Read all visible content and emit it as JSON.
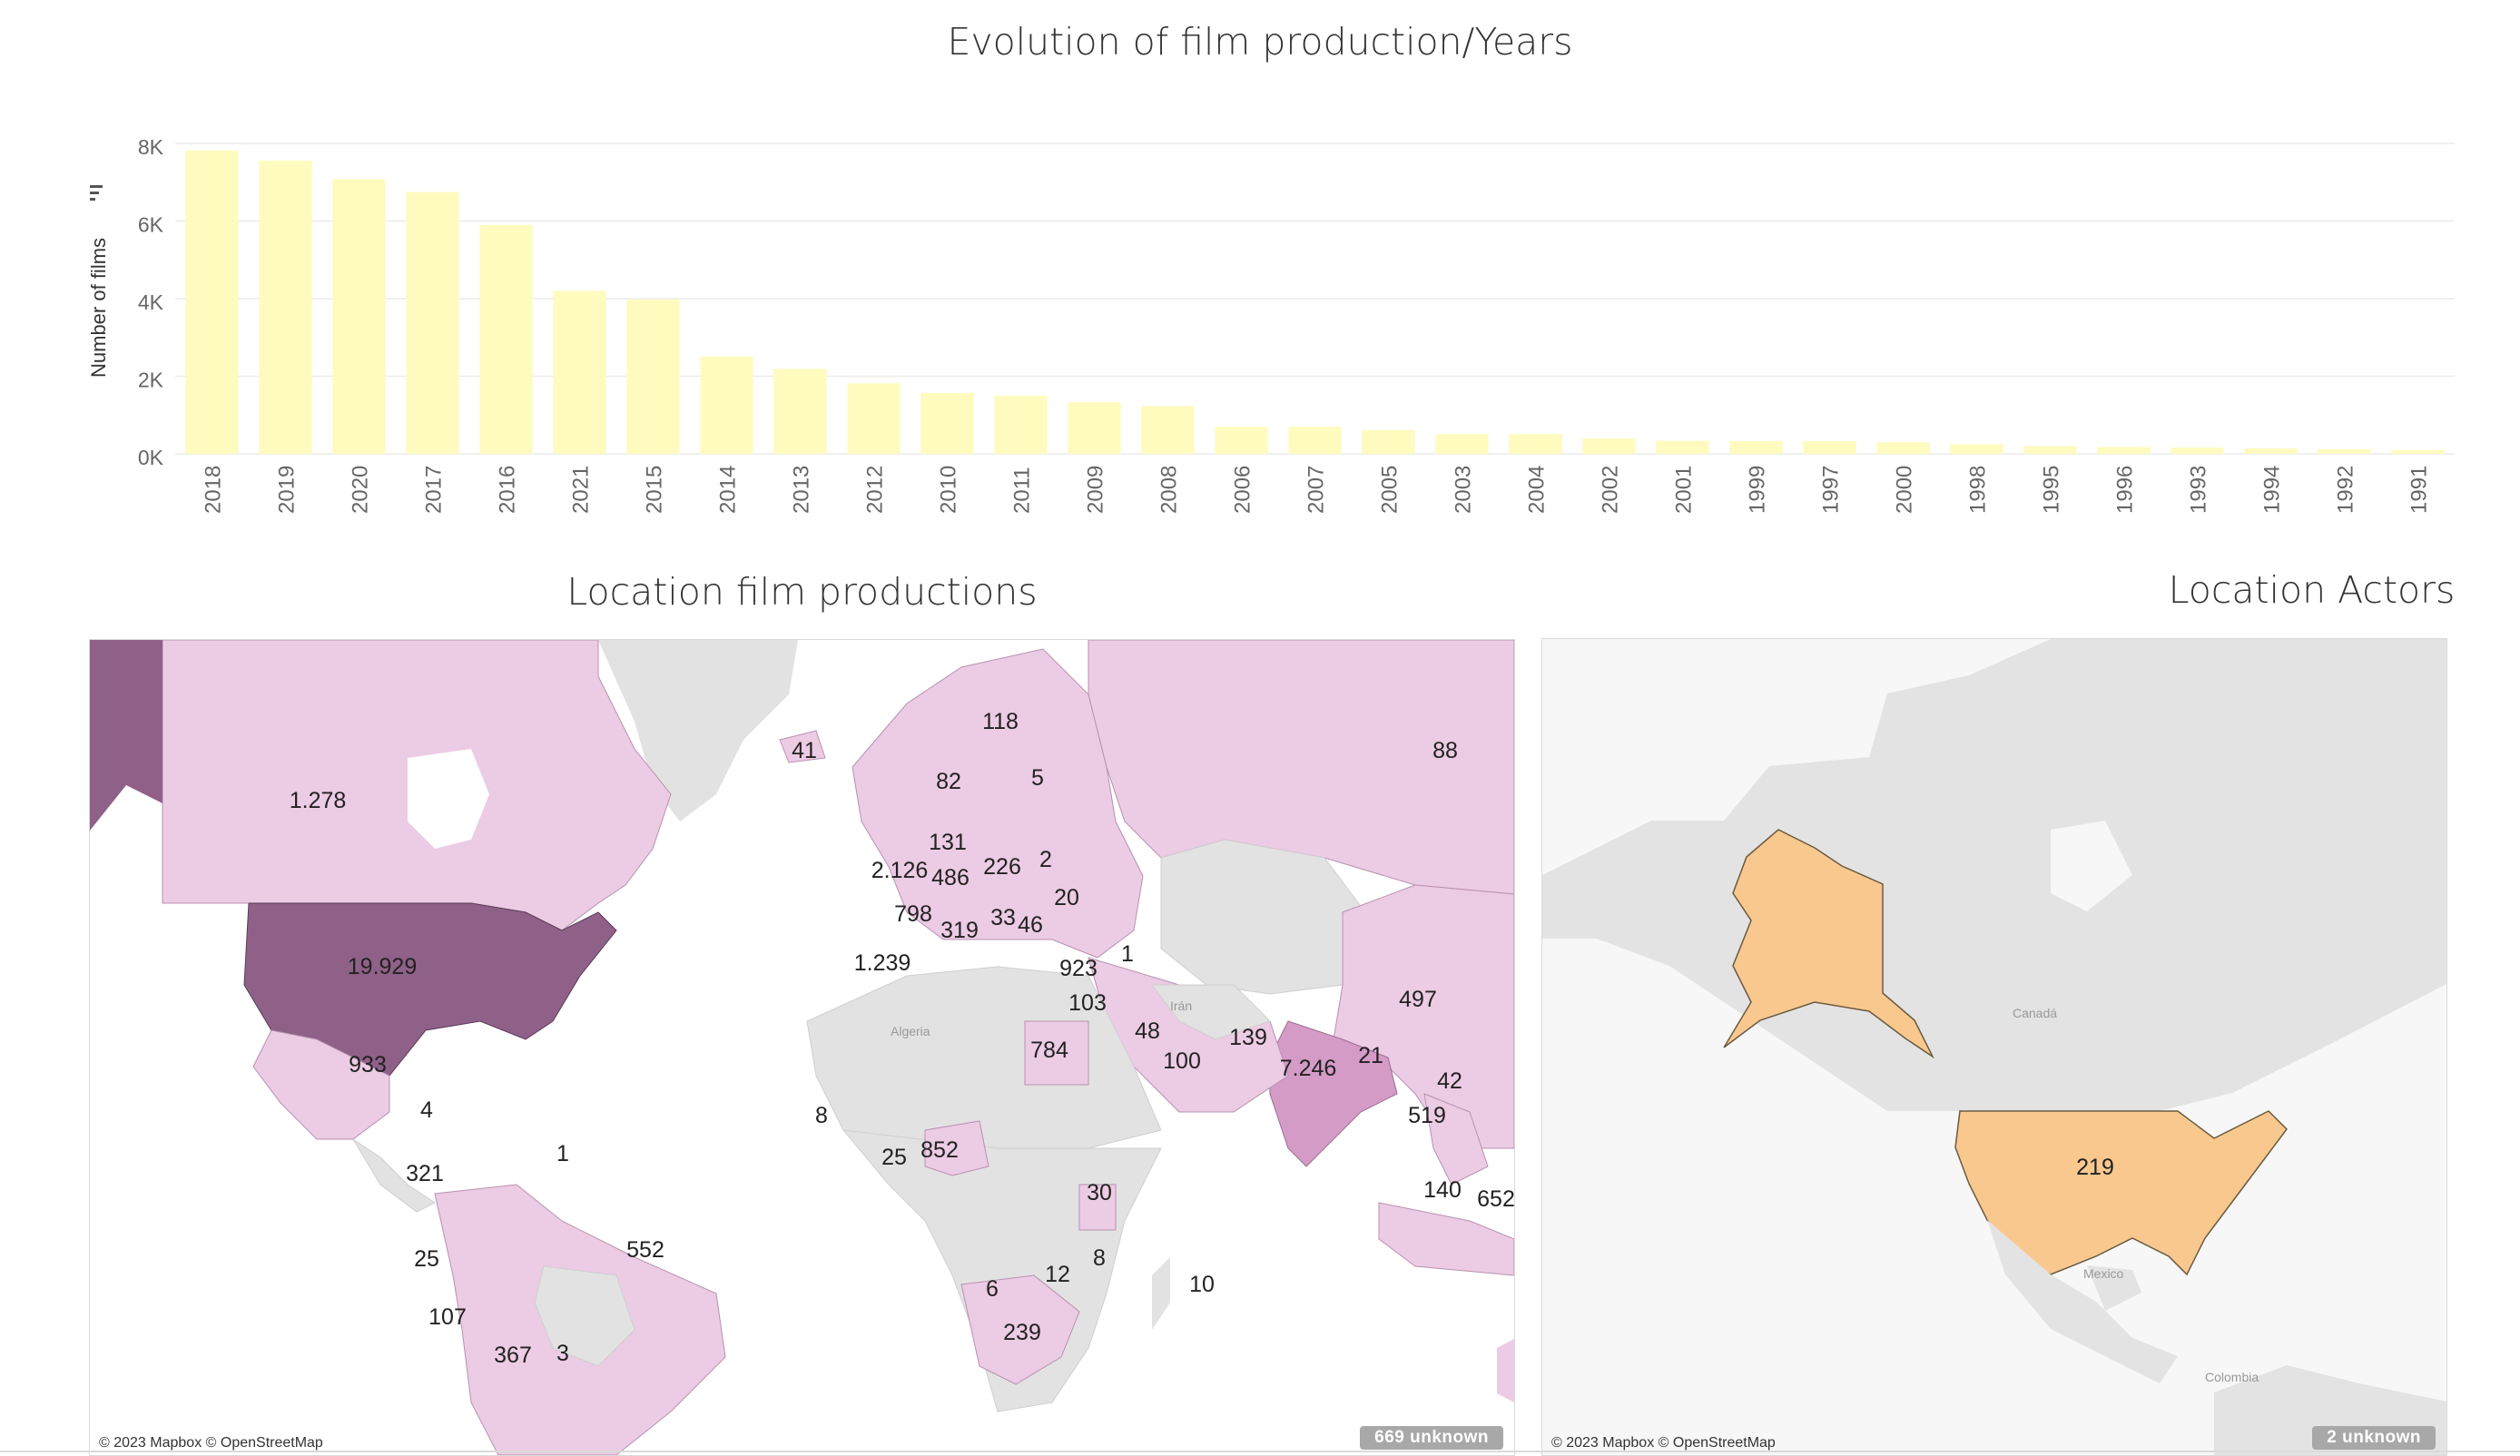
{
  "chart_title": "Evolution of film production/Years",
  "map1_title": "Location film productions",
  "map2_title": "Location Actors",
  "chart_data": {
    "type": "bar",
    "title": "Evolution of film production/Years",
    "xlabel": "",
    "ylabel": "Number of films",
    "ylim": [
      0,
      8000
    ],
    "y_ticks": [
      "8K",
      "6K",
      "4K",
      "2K",
      "0K"
    ],
    "grid": true,
    "bar_color": "#fffbbf",
    "categories": [
      "2018",
      "2019",
      "2020",
      "2017",
      "2016",
      "2021",
      "2015",
      "2014",
      "2013",
      "2012",
      "2010",
      "2011",
      "2009",
      "2008",
      "2006",
      "2007",
      "2005",
      "2003",
      "2004",
      "2002",
      "2001",
      "1999",
      "1997",
      "2000",
      "1998",
      "1995",
      "1996",
      "1993",
      "1994",
      "1992",
      "1991"
    ],
    "values": [
      7820,
      7560,
      7080,
      6750,
      5900,
      4200,
      3980,
      2510,
      2190,
      1820,
      1570,
      1500,
      1330,
      1230,
      700,
      700,
      610,
      510,
      510,
      400,
      340,
      330,
      330,
      300,
      250,
      200,
      180,
      160,
      140,
      120,
      100
    ]
  },
  "map1": {
    "credit": "© 2023 Mapbox © OpenStreetMap",
    "unknown": "669 unknown",
    "labels": [
      "1.278",
      "19.929",
      "933",
      "4",
      "41",
      "118",
      "5",
      "82",
      "131",
      "2.126",
      "486",
      "226",
      "2",
      "798",
      "319",
      "33",
      "46",
      "20",
      "1.239",
      "923",
      "1",
      "103",
      "88",
      "497",
      "48",
      "100",
      "784",
      "139",
      "7.246",
      "21",
      "42",
      "519",
      "8",
      "25",
      "852",
      "30",
      "140",
      "652",
      "321",
      "1",
      "25",
      "552",
      "107",
      "367",
      "3",
      "6",
      "12",
      "8",
      "239",
      "10"
    ],
    "place_names": [
      "Algeria",
      "Irán"
    ],
    "colors": {
      "light": "#eccbe4",
      "mid": "#d49bc7",
      "dark": "#8f6189",
      "unselected": "#e2e2e2"
    }
  },
  "map2": {
    "credit": "© 2023 Mapbox © OpenStreetMap",
    "unknown": "2 unknown",
    "labels": [
      "219"
    ],
    "place_names": [
      "Canadá",
      "Mexico",
      "Colombia"
    ],
    "colors": {
      "highlight": "#f9c88f"
    }
  }
}
